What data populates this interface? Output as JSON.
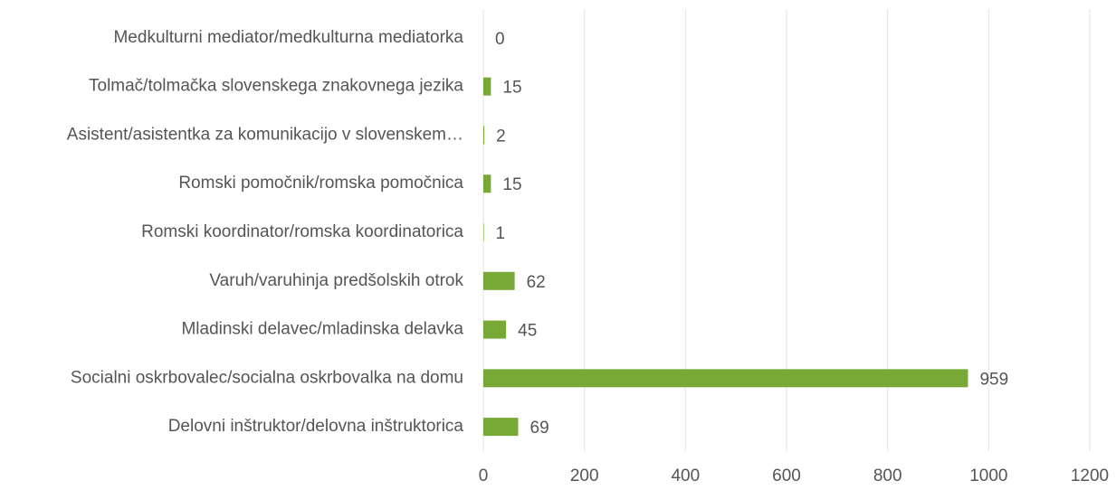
{
  "chart_data": {
    "type": "bar",
    "orientation": "horizontal",
    "categories": [
      "Medkulturni mediator/medkulturna mediatorka",
      "Tolmač/tolmačka slovenskega znakovnega jezika",
      "Asistent/asistentka za komunikacijo v slovenskem…",
      "Romski pomočnik/romska pomočnica",
      "Romski koordinator/romska koordinatorica",
      "Varuh/varuhinja predšolskih otrok",
      "Mladinski delavec/mladinska delavka",
      "Socialni oskrbovalec/socialna oskrbovalka na domu",
      "Delovni inštruktor/delovna inštruktorica"
    ],
    "values": [
      0,
      15,
      2,
      15,
      1,
      62,
      45,
      959,
      69
    ],
    "color": "#78a936",
    "xlim": [
      0,
      1200
    ],
    "xticks": [
      0,
      200,
      400,
      600,
      800,
      1000,
      1200
    ],
    "grid": true
  }
}
